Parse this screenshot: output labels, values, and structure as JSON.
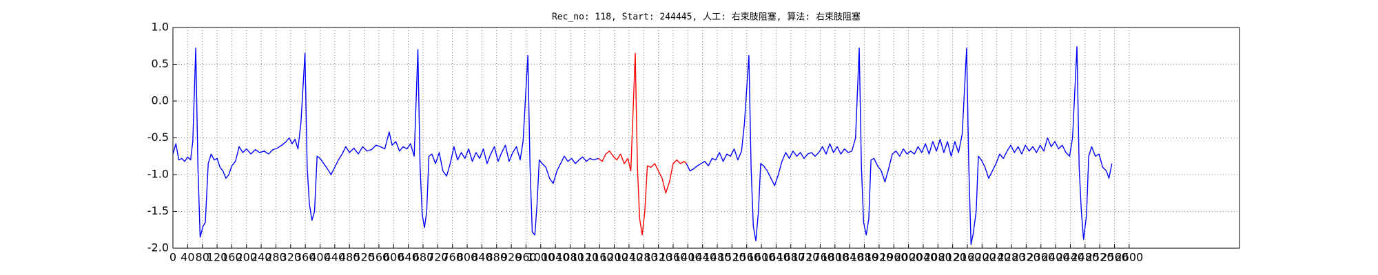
{
  "chart_data": {
    "type": "line",
    "title": "Rec_no: 118, Start: 244445, 人工: 右束肢阻塞, 算法: 右束肢阻塞",
    "xlim": [
      0,
      2900
    ],
    "ylim": [
      -2.0,
      1.0
    ],
    "xticks": [
      0,
      40,
      80,
      120,
      160,
      200,
      240,
      280,
      320,
      360,
      400,
      440,
      480,
      520,
      560,
      600,
      640,
      680,
      720,
      760,
      800,
      840,
      880,
      920,
      960,
      1000,
      1040,
      1080,
      1120,
      1160,
      1200,
      1240,
      1280,
      1320,
      1360,
      1400,
      1440,
      1480,
      1520,
      1560,
      1600,
      1640,
      1680,
      1720,
      1760,
      1800,
      1840,
      1880,
      1920,
      1960,
      2000,
      2040,
      2080,
      2120,
      2160,
      2200,
      2240,
      2280,
      2320,
      2360,
      2400,
      2440,
      2480,
      2520,
      2560,
      2600
    ],
    "yticks": [
      {
        "value": -2.0,
        "label": "-2.0"
      },
      -1.5,
      {
        "value": -1.0,
        "label": "-1.0"
      },
      -0.5,
      {
        "value": 0.0,
        "label": "0.0"
      },
      0.5,
      {
        "value": 1.0,
        "label": "1.0"
      }
    ],
    "grid": true,
    "series": [
      {
        "color": "#0000ff",
        "x": [
          0,
          8,
          16,
          24,
          32,
          40,
          48,
          54,
          62,
          68,
          74,
          82,
          88,
          96,
          104,
          112,
          120,
          128,
          136,
          144,
          152,
          160,
          170,
          180,
          190,
          200,
          212,
          224,
          236,
          248,
          260,
          272,
          284,
          296,
          308,
          316,
          324,
          332,
          340,
          348,
          359,
          365,
          371,
          378,
          385,
          392,
          400,
          410,
          420,
          430,
          440,
          450,
          460,
          470,
          480,
          492,
          504,
          516,
          528,
          540,
          552,
          564,
          576,
          588,
          596,
          606,
          616,
          626,
          636,
          646,
          656,
          666,
          672,
          678,
          684,
          690,
          696,
          704,
          714,
          724,
          734,
          744,
          754,
          764,
          774,
          784,
          794,
          804,
          814,
          824,
          834,
          844,
          854,
          864,
          874,
          884,
          894,
          904,
          914,
          924,
          934,
          944,
          952,
          965,
          971,
          977,
          984,
          990,
          996,
          1004,
          1014,
          1024,
          1034,
          1044,
          1054,
          1064,
          1074,
          1084,
          1094,
          1104,
          1114,
          1124,
          1134,
          1144,
          1157
        ],
        "values": [
          -0.72,
          -0.58,
          -0.8,
          -0.78,
          -0.82,
          -0.76,
          -0.8,
          -0.55,
          0.72,
          -0.9,
          -1.85,
          -1.7,
          -1.65,
          -0.85,
          -0.72,
          -0.8,
          -0.78,
          -0.9,
          -0.95,
          -1.05,
          -1.0,
          -0.88,
          -0.82,
          -0.62,
          -0.7,
          -0.65,
          -0.72,
          -0.66,
          -0.7,
          -0.68,
          -0.72,
          -0.66,
          -0.64,
          -0.6,
          -0.55,
          -0.5,
          -0.58,
          -0.52,
          -0.65,
          -0.3,
          0.65,
          -0.9,
          -1.4,
          -1.62,
          -1.5,
          -0.75,
          -0.78,
          -0.85,
          -0.92,
          -1.0,
          -0.9,
          -0.8,
          -0.72,
          -0.62,
          -0.7,
          -0.64,
          -0.72,
          -0.62,
          -0.68,
          -0.66,
          -0.6,
          -0.62,
          -0.65,
          -0.42,
          -0.6,
          -0.55,
          -0.68,
          -0.62,
          -0.65,
          -0.58,
          -0.75,
          0.7,
          -0.9,
          -1.55,
          -1.72,
          -1.5,
          -0.75,
          -0.72,
          -0.85,
          -0.7,
          -0.95,
          -1.02,
          -0.85,
          -0.62,
          -0.8,
          -0.7,
          -0.78,
          -0.65,
          -0.82,
          -0.7,
          -0.78,
          -0.65,
          -0.85,
          -0.72,
          -0.62,
          -0.82,
          -0.7,
          -0.6,
          -0.82,
          -0.7,
          -0.62,
          -0.8,
          -0.55,
          0.62,
          -0.9,
          -1.78,
          -1.82,
          -1.4,
          -0.8,
          -0.85,
          -0.9,
          -1.05,
          -1.12,
          -0.95,
          -0.85,
          -0.75,
          -0.82,
          -0.78,
          -0.85,
          -0.8,
          -0.76,
          -0.82,
          -0.78,
          -0.8,
          -0.78
        ]
      },
      {
        "color": "#ff0000",
        "x": [
          1157,
          1167,
          1177,
          1187,
          1197,
          1207,
          1217,
          1227,
          1237,
          1245,
          1257,
          1263,
          1269,
          1276,
          1283,
          1290,
          1300,
          1310,
          1320,
          1330,
          1340,
          1350,
          1360,
          1370,
          1380,
          1390,
          1396
        ],
        "values": [
          -0.78,
          -0.82,
          -0.72,
          -0.68,
          -0.75,
          -0.8,
          -0.72,
          -0.85,
          -0.78,
          -0.95,
          0.65,
          -0.9,
          -1.6,
          -1.82,
          -1.5,
          -0.88,
          -0.9,
          -0.85,
          -0.95,
          -1.05,
          -1.25,
          -1.1,
          -0.85,
          -0.8,
          -0.85,
          -0.82,
          -0.85
        ]
      },
      {
        "color": "#0000ff",
        "x": [
          1396,
          1406,
          1416,
          1426,
          1436,
          1446,
          1456,
          1466,
          1476,
          1486,
          1496,
          1506,
          1516,
          1526,
          1536,
          1546,
          1554,
          1566,
          1572,
          1578,
          1585,
          1592,
          1598,
          1606,
          1616,
          1626,
          1636,
          1646,
          1656,
          1666,
          1676,
          1686,
          1696,
          1706,
          1716,
          1726,
          1736,
          1746,
          1756,
          1766,
          1776,
          1786,
          1796,
          1806,
          1816,
          1826,
          1836,
          1846,
          1856,
          1866,
          1872,
          1878,
          1885,
          1892,
          1898,
          1906,
          1916,
          1926,
          1936,
          1946,
          1956,
          1966,
          1976,
          1986,
          1996,
          2006,
          2016,
          2026,
          2036,
          2046,
          2056,
          2066,
          2076,
          2086,
          2096,
          2106,
          2116,
          2126,
          2136,
          2146,
          2158,
          2164,
          2170,
          2176,
          2184,
          2190,
          2198,
          2208,
          2218,
          2228,
          2238,
          2248,
          2258,
          2268,
          2278,
          2288,
          2298,
          2308,
          2318,
          2328,
          2338,
          2348,
          2358,
          2368,
          2378,
          2388,
          2398,
          2408,
          2418,
          2428,
          2438,
          2446,
          2458,
          2464,
          2470,
          2476,
          2484,
          2490,
          2498,
          2508,
          2518,
          2528,
          2538,
          2545,
          2553
        ],
        "values": [
          -0.85,
          -0.95,
          -0.92,
          -0.88,
          -0.85,
          -0.82,
          -0.88,
          -0.78,
          -0.8,
          -0.7,
          -0.82,
          -0.72,
          -0.75,
          -0.65,
          -0.8,
          -0.68,
          -0.3,
          0.62,
          -0.9,
          -1.7,
          -1.9,
          -1.5,
          -0.85,
          -0.88,
          -0.95,
          -1.05,
          -1.15,
          -1.0,
          -0.82,
          -0.7,
          -0.78,
          -0.68,
          -0.75,
          -0.7,
          -0.78,
          -0.72,
          -0.7,
          -0.75,
          -0.7,
          -0.62,
          -0.72,
          -0.58,
          -0.7,
          -0.62,
          -0.72,
          -0.65,
          -0.7,
          -0.68,
          -0.5,
          0.72,
          -0.9,
          -1.65,
          -1.82,
          -1.6,
          -0.8,
          -0.78,
          -0.88,
          -0.95,
          -1.1,
          -0.92,
          -0.72,
          -0.68,
          -0.75,
          -0.65,
          -0.72,
          -0.68,
          -0.72,
          -0.62,
          -0.7,
          -0.58,
          -0.72,
          -0.55,
          -0.68,
          -0.52,
          -0.7,
          -0.55,
          -0.75,
          -0.55,
          -0.7,
          -0.45,
          0.72,
          -0.9,
          -1.95,
          -1.8,
          -1.5,
          -0.75,
          -0.8,
          -0.9,
          -1.05,
          -0.95,
          -0.85,
          -0.72,
          -0.78,
          -0.68,
          -0.6,
          -0.7,
          -0.62,
          -0.72,
          -0.6,
          -0.68,
          -0.62,
          -0.7,
          -0.6,
          -0.68,
          -0.5,
          -0.62,
          -0.55,
          -0.65,
          -0.6,
          -0.7,
          -0.75,
          -0.5,
          0.74,
          -0.9,
          -1.5,
          -1.88,
          -1.55,
          -0.75,
          -0.62,
          -0.75,
          -0.72,
          -0.9,
          -0.95,
          -1.05,
          -0.85
        ]
      }
    ]
  }
}
